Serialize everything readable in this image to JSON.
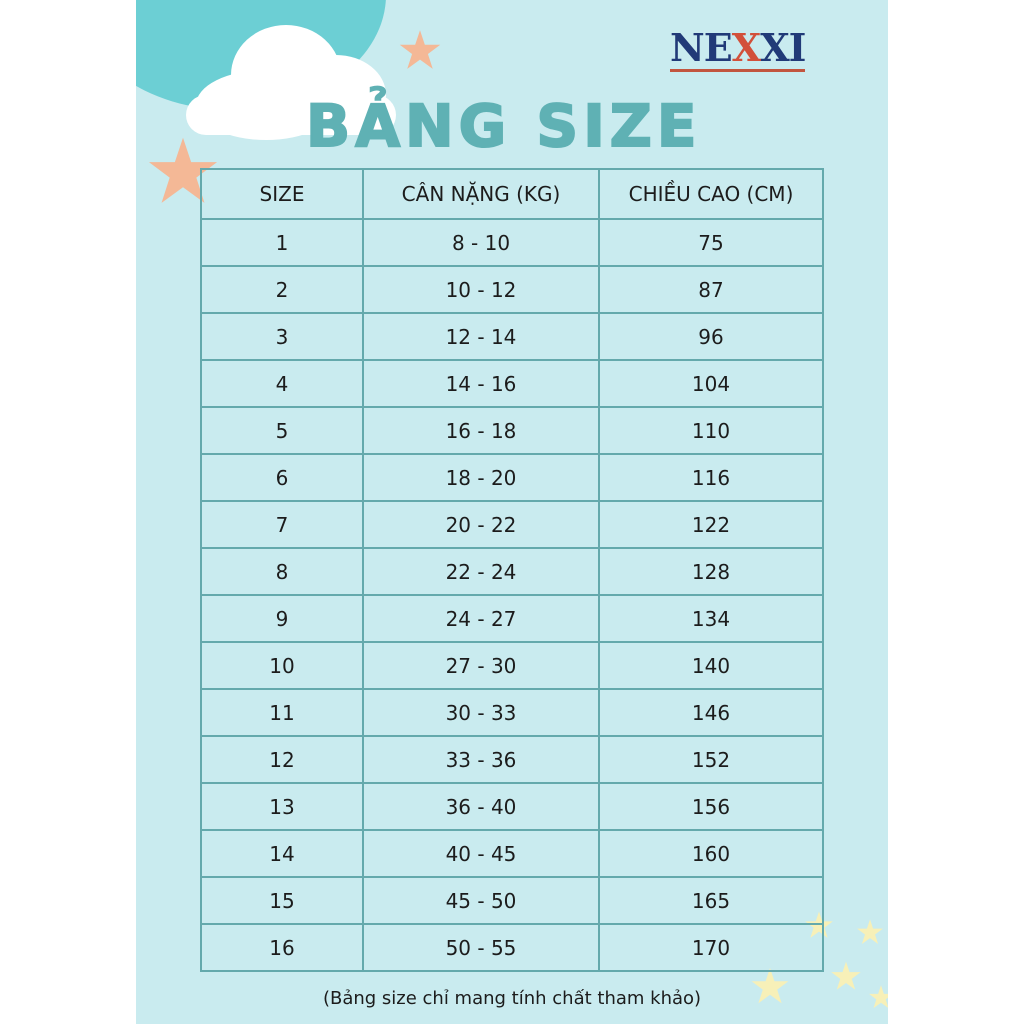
{
  "brand": {
    "logo": "NEXXI"
  },
  "title": "BẢNG SIZE",
  "table": {
    "headers": [
      "SIZE",
      "CÂN NẶNG (KG)",
      "CHIỀU CAO (CM)"
    ],
    "rows": [
      [
        "1",
        "8 - 10",
        "75"
      ],
      [
        "2",
        "10 - 12",
        "87"
      ],
      [
        "3",
        "12 - 14",
        "96"
      ],
      [
        "4",
        "14 - 16",
        "104"
      ],
      [
        "5",
        "16 - 18",
        "110"
      ],
      [
        "6",
        "18 - 20",
        "116"
      ],
      [
        "7",
        "20 - 22",
        "122"
      ],
      [
        "8",
        "22 - 24",
        "128"
      ],
      [
        "9",
        "24 - 27",
        "134"
      ],
      [
        "10",
        "27 - 30",
        "140"
      ],
      [
        "11",
        "30 - 33",
        "146"
      ],
      [
        "12",
        "33 - 36",
        "152"
      ],
      [
        "13",
        "36 - 40",
        "156"
      ],
      [
        "14",
        "40 - 45",
        "160"
      ],
      [
        "15",
        "45 - 50",
        "165"
      ],
      [
        "16",
        "50 - 55",
        "170"
      ]
    ]
  },
  "note": "(Bảng size chỉ mang tính chất tham khảo)",
  "colors": {
    "background": "#c9ebef",
    "title": "#5fb1b4",
    "border": "#64a9ac",
    "star": "#f4b896",
    "small_star": "#f7f0b8"
  }
}
